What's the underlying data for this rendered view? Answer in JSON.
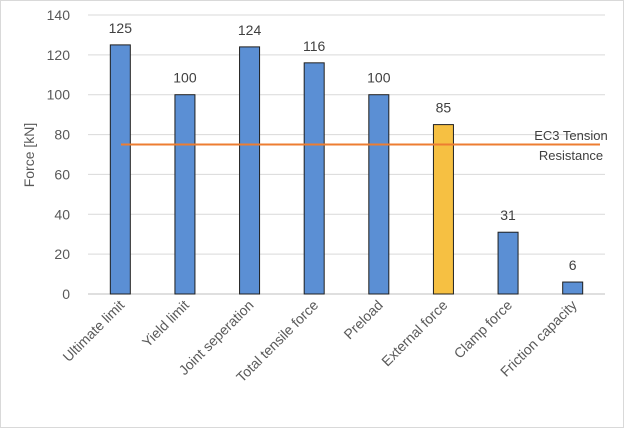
{
  "chart_data": {
    "type": "bar",
    "title": "",
    "xlabel": "",
    "ylabel": "Force [kN]",
    "ylim": [
      0,
      140
    ],
    "yticks": [
      0,
      20,
      40,
      60,
      80,
      100,
      120,
      140
    ],
    "grid": "horizontal",
    "categories": [
      "Ultimate limit",
      "Yield limit",
      "Joint seperation",
      "Total tensile force",
      "Preload",
      "External force",
      "Clamp force",
      "Friction capacity"
    ],
    "values": [
      125,
      100,
      124,
      116,
      100,
      85,
      31,
      6
    ],
    "bar_colors": [
      "#5b8fd4",
      "#5b8fd4",
      "#5b8fd4",
      "#5b8fd4",
      "#5b8fd4",
      "#f6c042",
      "#5b8fd4",
      "#5b8fd4"
    ],
    "reference_line": {
      "value": 75,
      "color": "#ed7d31",
      "label_lines": [
        "EC3 Tension",
        "Resistance"
      ]
    }
  }
}
